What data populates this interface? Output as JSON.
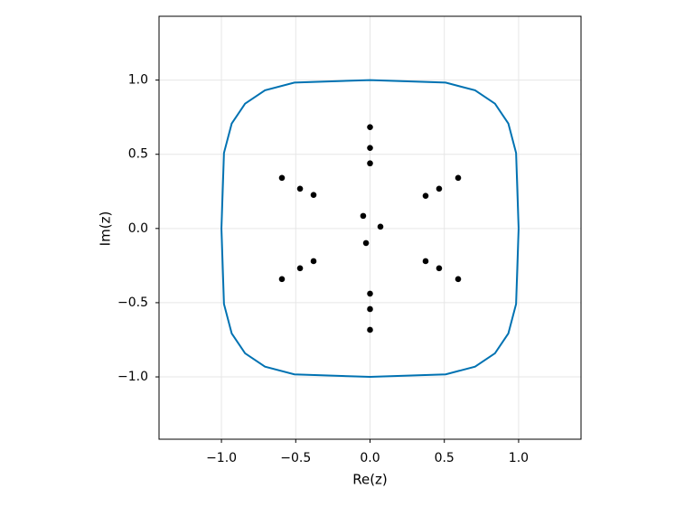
{
  "chart_data": {
    "type": "scatter",
    "xlabel": "Re(z)",
    "ylabel": "Im(z)",
    "xlim": [
      -1.42,
      1.42
    ],
    "ylim": [
      -1.42,
      1.43
    ],
    "xticks": [
      {
        "value": -1,
        "label": "−1.0"
      },
      {
        "value": -0.5,
        "label": "−0.5"
      },
      {
        "value": 0,
        "label": "0.0"
      },
      0.5,
      {
        "value": 1,
        "label": "1.0"
      }
    ],
    "yticks": [
      {
        "value": -1,
        "label": "−1.0"
      },
      {
        "value": -0.5,
        "label": "−0.5"
      },
      {
        "value": 0,
        "label": "0.0"
      },
      0.5,
      {
        "value": 1,
        "label": "1.0"
      }
    ],
    "grid": true,
    "series": [
      {
        "type": "line",
        "color": "#0072b2",
        "x": [
          1,
          0.983,
          0.931,
          0.841,
          0.707,
          0.509,
          0,
          -0.509,
          -0.707,
          -0.841,
          -0.931,
          -0.983,
          -1,
          -0.983,
          -0.931,
          -0.841,
          -0.707,
          -0.509,
          0,
          0.509,
          0.707,
          0.841,
          0.931,
          0.983,
          1
        ],
        "y": [
          0,
          0.509,
          0.707,
          0.841,
          0.931,
          0.983,
          1,
          0.983,
          0.931,
          0.841,
          0.707,
          0.509,
          0,
          -0.509,
          -0.707,
          -0.841,
          -0.931,
          -0.983,
          -1,
          -0.983,
          -0.931,
          -0.841,
          -0.707,
          -0.509,
          0
        ]
      },
      {
        "type": "scatter",
        "color": "#000000",
        "x": [
          0,
          0,
          0,
          0,
          0,
          0,
          -0.593,
          -0.471,
          -0.38,
          0.593,
          0.465,
          0.374,
          -0.046,
          0.07,
          -0.027,
          -0.593,
          -0.471,
          -0.38,
          0.374,
          0.465,
          0.593
        ],
        "y": [
          0.683,
          0.543,
          0.439,
          -0.439,
          -0.543,
          -0.683,
          0.341,
          0.268,
          0.226,
          0.341,
          0.268,
          0.22,
          0.085,
          0.012,
          -0.098,
          -0.341,
          -0.268,
          -0.22,
          -0.22,
          -0.268,
          -0.341
        ]
      }
    ]
  }
}
